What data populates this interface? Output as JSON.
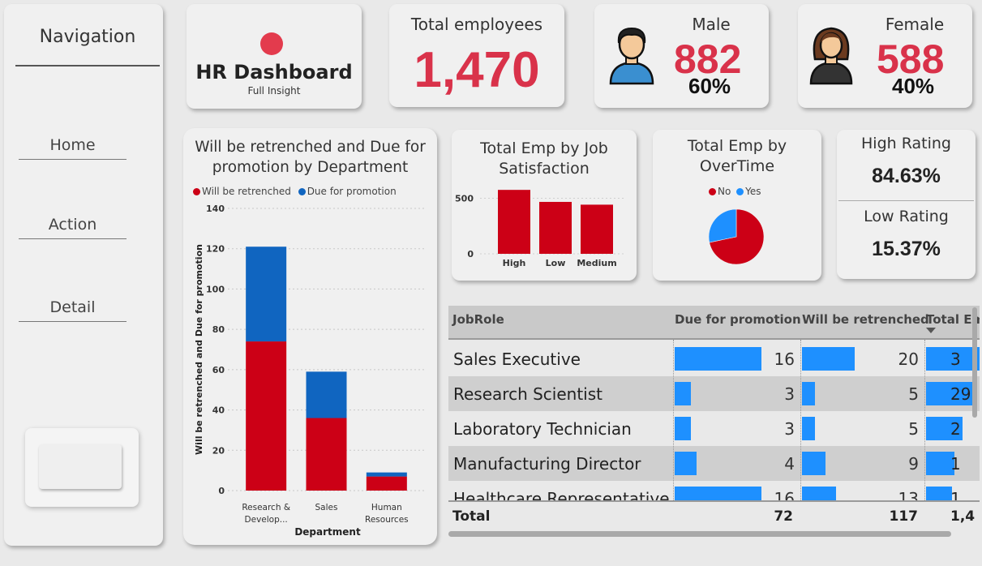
{
  "nav": {
    "title": "Navigation",
    "items": [
      {
        "label": "Home"
      },
      {
        "label": "Action"
      },
      {
        "label": "Detail"
      }
    ]
  },
  "header": {
    "title": "HR Dashboard",
    "subtitle": "Full Insight",
    "accent": "#e33b4d"
  },
  "kpis": {
    "total": {
      "label": "Total employees",
      "value": "1,470"
    },
    "male": {
      "label": "Male",
      "value": "882",
      "pct": "60%"
    },
    "female": {
      "label": "Female",
      "value": "588",
      "pct": "40%"
    }
  },
  "rating": {
    "high_label": "High Rating",
    "high_value": "84.63%",
    "low_label": "Low Rating",
    "low_value": "15.37%"
  },
  "colors": {
    "red": "#cc0016",
    "blue": "#1065c0",
    "bright_blue": "#1e90ff",
    "kpi_red": "#d9324a"
  },
  "chart_data": [
    {
      "type": "bar",
      "stacked": true,
      "title": "Will be retrenched and Due for promotion by Department",
      "xlabel": "Department",
      "ylabel": "Will be retrenched and Due for promotion",
      "categories": [
        "Research & Develop...",
        "Sales",
        "Human Resources"
      ],
      "series": [
        {
          "name": "Will be retrenched",
          "values": [
            74,
            36,
            7
          ]
        },
        {
          "name": "Due for promotion",
          "values": [
            47,
            23,
            2
          ]
        }
      ],
      "ylim": [
        0,
        140
      ],
      "yticks": [
        "0",
        "20",
        "40",
        "60",
        "80",
        "100",
        "120",
        "140"
      ],
      "grid": true,
      "legend": "top-left"
    },
    {
      "type": "bar",
      "title": "Total Emp by Job Satisfaction",
      "categories": [
        "High",
        "Low",
        "Medium"
      ],
      "values": [
        575,
        467,
        442
      ],
      "ylim": [
        0,
        620
      ],
      "yticks": [
        "0",
        "500"
      ]
    },
    {
      "type": "pie",
      "title": "Total Emp by OverTime",
      "legend": "top",
      "categories": [
        "No",
        "Yes"
      ],
      "values": [
        1054,
        416
      ]
    },
    {
      "type": "table",
      "columns": [
        "JobRole",
        "Due for promotion",
        "Will be retrenched",
        "Total Em"
      ],
      "rows": [
        {
          "role": "Sales Executive",
          "promo": 16,
          "retrench": 20,
          "total": "3"
        },
        {
          "role": "Research Scientist",
          "promo": 3,
          "retrench": 5,
          "total": "29"
        },
        {
          "role": "Laboratory Technician",
          "promo": 3,
          "retrench": 5,
          "total": "2"
        },
        {
          "role": "Manufacturing Director",
          "promo": 4,
          "retrench": 9,
          "total": "1"
        },
        {
          "role": "Healthcare Representative",
          "promo": 16,
          "retrench": 13,
          "total": "1"
        }
      ],
      "totals": {
        "label": "Total",
        "promo": "72",
        "retrench": "117",
        "total": "1,4"
      },
      "bar_max": {
        "promo": 16,
        "retrench": 20
      }
    }
  ]
}
